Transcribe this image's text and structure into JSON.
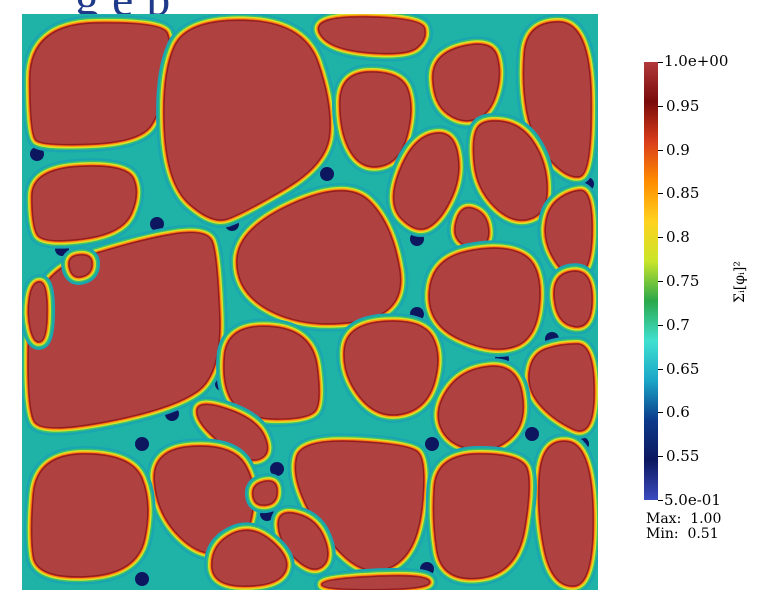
{
  "header": {
    "title_fragment": "g e p"
  },
  "colorbar": {
    "max_label": "1.0e+00",
    "min_label": "5.0e-01",
    "tick_labels": [
      "0.95",
      "0.9",
      "0.85",
      "0.8",
      "0.75",
      "0.7",
      "0.65",
      "0.6",
      "0.55"
    ],
    "tick_values": [
      0.95,
      0.9,
      0.85,
      0.8,
      0.75,
      0.7,
      0.65,
      0.6,
      0.55
    ],
    "range": [
      0.5,
      1.0
    ],
    "axis_title": "Σᵢ[φᵢ]²",
    "colormap_stops": [
      "#3b4cc0",
      "#0c1760",
      "#0b3a8a",
      "#1aa6c8",
      "#40e0d0",
      "#2aa84a",
      "#c9e52a",
      "#ffd21e",
      "#ff8c00",
      "#d93d1b",
      "#7a0a0a",
      "#b33a3a"
    ]
  },
  "stats": {
    "max_label": "Max:",
    "max_value": "1.00",
    "min_label": "Min:",
    "min_value": "0.51"
  },
  "field": {
    "grain_color": "#b04141",
    "boundary_color": "#20b8a8",
    "junction_color": "#0c1760"
  }
}
